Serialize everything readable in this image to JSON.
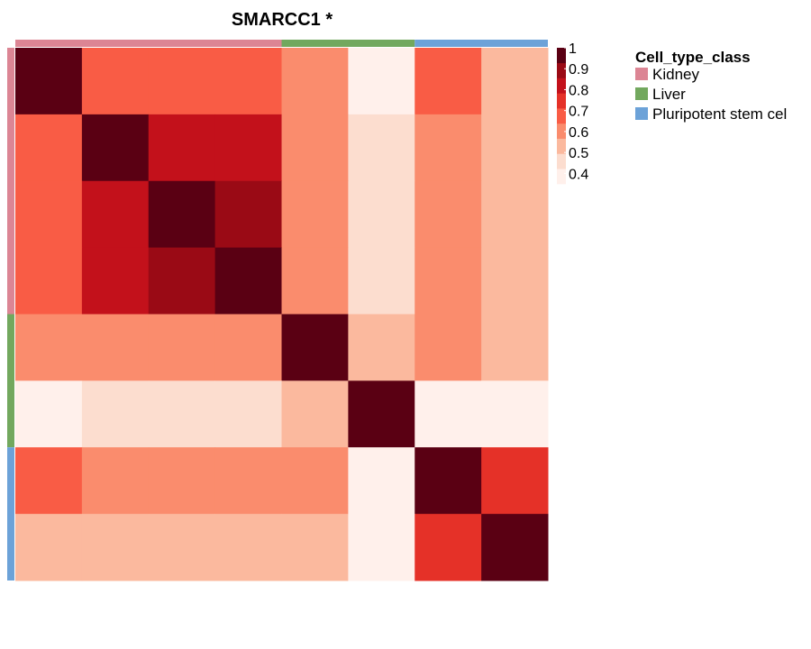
{
  "chart_data": {
    "type": "heatmap",
    "title": "SMARCC1 *",
    "n": 8,
    "groups": [
      {
        "name": "Kidney",
        "color": "#DC8594",
        "count": 4
      },
      {
        "name": "Liver",
        "color": "#72A85E",
        "count": 2
      },
      {
        "name": "Pluripotent stem cel",
        "color": "#6CA2D8",
        "count": 2
      }
    ],
    "legend_title": "Cell_type_class",
    "colorbar": {
      "ticks": [
        "1",
        "0.9",
        "0.8",
        "0.7",
        "0.6",
        "0.5",
        "0.4"
      ],
      "min": 0.35,
      "max": 1.0,
      "colors": [
        "#FFF0EB",
        "#FCDDCF",
        "#FBB99E",
        "#FA8C6D",
        "#F95C45",
        "#E53128",
        "#C3111B",
        "#9A0A15",
        "#5A0013"
      ]
    },
    "matrix": [
      [
        1.0,
        0.68,
        0.68,
        0.68,
        0.58,
        0.38,
        0.65,
        0.52
      ],
      [
        0.68,
        1.0,
        0.8,
        0.8,
        0.58,
        0.45,
        0.58,
        0.52
      ],
      [
        0.68,
        0.8,
        1.0,
        0.9,
        0.58,
        0.45,
        0.58,
        0.52
      ],
      [
        0.68,
        0.8,
        0.9,
        1.0,
        0.58,
        0.45,
        0.58,
        0.52
      ],
      [
        0.58,
        0.58,
        0.58,
        0.58,
        1.0,
        0.52,
        0.58,
        0.52
      ],
      [
        0.38,
        0.45,
        0.45,
        0.45,
        0.52,
        1.0,
        0.38,
        0.38
      ],
      [
        0.65,
        0.58,
        0.58,
        0.58,
        0.58,
        0.38,
        1.0,
        0.75
      ],
      [
        0.52,
        0.52,
        0.52,
        0.52,
        0.52,
        0.38,
        0.75,
        1.0
      ]
    ]
  }
}
